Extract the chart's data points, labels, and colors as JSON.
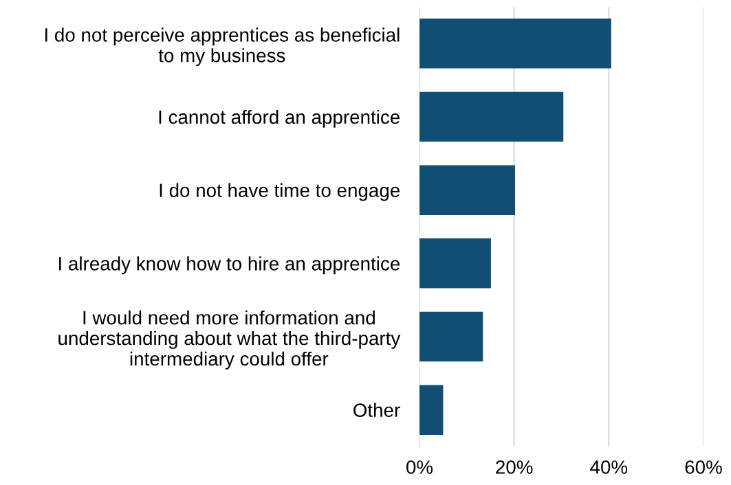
{
  "chart_data": {
    "type": "bar",
    "orientation": "horizontal",
    "categories": [
      "I do not perceive apprentices as beneficial\nto my business",
      "I cannot afford an apprentice",
      "I do not have time to engage",
      "I already know how to hire an apprentice",
      "I would need more information and\nunderstanding about what the third-party\nintermediary could offer",
      "Other"
    ],
    "values": [
      40.5,
      30.4,
      20.2,
      15.1,
      13.4,
      5.0
    ],
    "color": "#124e73",
    "xlim": [
      0,
      60
    ],
    "xticks": [
      {
        "value": 0,
        "label": "0%"
      },
      {
        "value": 20,
        "label": "20%"
      },
      {
        "value": 40,
        "label": "40%"
      },
      {
        "value": 60,
        "label": "60%"
      }
    ],
    "grid": "x"
  }
}
